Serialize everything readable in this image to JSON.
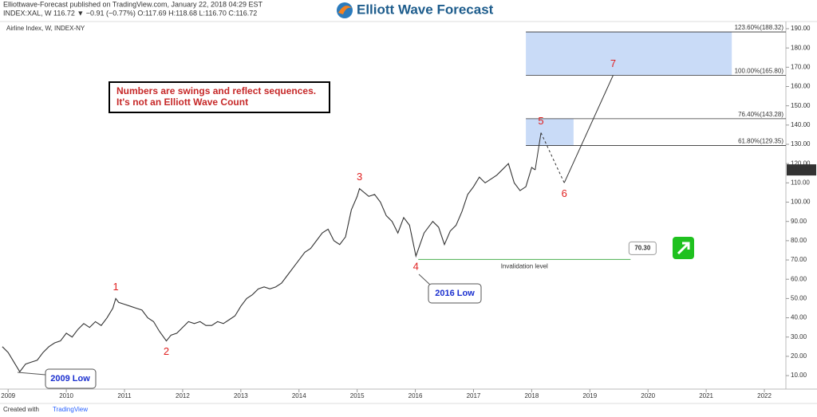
{
  "header": {
    "published": "Elliottwave-Forecast published on TradingView.com, January 22, 2018 04:29 EST",
    "symbol": "INDEX:XAL, W  116.72 ▼ −0.91 (−0.77%)  O:117.69  H:118.68  L:116.70  C:116.72",
    "logo": "Elliott Wave Forecast",
    "footer": "Created with",
    "footer_brand": "TradingView"
  },
  "chart_data": {
    "type": "line",
    "title": "Airline Index, W, INDEX-NY",
    "annotation_lines": [
      "Numbers are swings and reflect sequences.",
      "It's not an Elliott Wave Count"
    ],
    "color": "#333333",
    "x": [
      2008.9,
      2009.0,
      2009.1,
      2009.2,
      2009.3,
      2009.4,
      2009.5,
      2009.6,
      2009.7,
      2009.8,
      2009.9,
      2010.0,
      2010.1,
      2010.2,
      2010.3,
      2010.4,
      2010.5,
      2010.6,
      2010.7,
      2010.8,
      2010.85,
      2010.9,
      2011.0,
      2011.1,
      2011.2,
      2011.3,
      2011.4,
      2011.5,
      2011.6,
      2011.72,
      2011.8,
      2011.9,
      2012.0,
      2012.1,
      2012.2,
      2012.3,
      2012.4,
      2012.5,
      2012.6,
      2012.7,
      2012.8,
      2012.9,
      2013.0,
      2013.1,
      2013.2,
      2013.3,
      2013.4,
      2013.5,
      2013.6,
      2013.7,
      2013.8,
      2013.9,
      2014.0,
      2014.1,
      2014.2,
      2014.3,
      2014.4,
      2014.5,
      2014.6,
      2014.7,
      2014.8,
      2014.9,
      2015.0,
      2015.04,
      2015.2,
      2015.3,
      2015.4,
      2015.5,
      2015.6,
      2015.7,
      2015.8,
      2015.9,
      2016.01,
      2016.15,
      2016.3,
      2016.4,
      2016.5,
      2016.6,
      2016.7,
      2016.8,
      2016.9,
      2017.0,
      2017.1,
      2017.2,
      2017.3,
      2017.4,
      2017.5,
      2017.6,
      2017.7,
      2017.8,
      2017.9,
      2018.0,
      2018.06
    ],
    "values": [
      25,
      22,
      17,
      12,
      16,
      17,
      18,
      22,
      25,
      27,
      28,
      32,
      30,
      34,
      37,
      35,
      38,
      36,
      40,
      45,
      50,
      48,
      47,
      46,
      45,
      44,
      40,
      38,
      33,
      28,
      31,
      32,
      35,
      38,
      37,
      38,
      36,
      36,
      38,
      37,
      39,
      41,
      46,
      50,
      52,
      55,
      56,
      55,
      56,
      58,
      62,
      66,
      70,
      74,
      76,
      80,
      84,
      86,
      80,
      78,
      82,
      96,
      103,
      107,
      103,
      104,
      100,
      93,
      90,
      84,
      92,
      88,
      72,
      84,
      90,
      87,
      78,
      85,
      88,
      95,
      104,
      108,
      113,
      110,
      112,
      114,
      117,
      120,
      110,
      106,
      108,
      118,
      116.72
    ],
    "last_price": 116.72,
    "projection": {
      "x": [
        2018.06,
        2018.16,
        2018.56,
        2019.4
      ],
      "values": [
        116.72,
        136,
        110,
        165.8
      ],
      "dashed": [
        false,
        true,
        false
      ],
      "color": "#333333"
    },
    "swings": {
      "labels": [
        "1",
        "2",
        "3",
        "4",
        "5",
        "6",
        "7"
      ],
      "x": [
        2010.85,
        2011.72,
        2015.04,
        2016.01,
        2018.16,
        2018.56,
        2019.4
      ],
      "values": [
        50,
        28,
        107,
        72,
        136,
        110,
        165.8
      ],
      "color": "#e02020"
    },
    "fib_zones": [
      {
        "from": 129.35,
        "to": 143.28,
        "x": [
          2017.9,
          2018.72
        ]
      },
      {
        "from": 165.8,
        "to": 188.32,
        "x": [
          2017.9,
          2021.44
        ]
      }
    ],
    "fib_color": "#c9dbf7",
    "fib_start": 2017.9,
    "fib_levels": [
      {
        "value": 188.32,
        "label": "123.60%(188.32)"
      },
      {
        "value": 165.8,
        "label": "100.00%(165.80)"
      },
      {
        "value": 143.28,
        "label": "76.40%(143.28)"
      },
      {
        "value": 129.35,
        "label": "61.80%(129.35)"
      }
    ],
    "invalidation": {
      "level": {
        "value": 70.3,
        "label": "70.30"
      },
      "text": "Invalidation level",
      "x": [
        2016.05,
        2019.7
      ],
      "color": "#4caf50"
    },
    "callouts": [
      "2009 Low",
      "2016 Low"
    ],
    "xlim": [
      2008.86,
      2022.37
    ],
    "xticks": [
      2009,
      2010,
      2011,
      2012,
      2013,
      2014,
      2015,
      2016,
      2017,
      2018,
      2019,
      2020,
      2021,
      2022
    ],
    "ylim": [
      3,
      193.3
    ],
    "yticks": [
      {
        "value": 10,
        "label": "10.00"
      },
      {
        "value": 20,
        "label": "20.00"
      },
      {
        "value": 30,
        "label": "30.00"
      },
      {
        "value": 40,
        "label": "40.00"
      },
      {
        "value": 50,
        "label": "50.00"
      },
      {
        "value": 60,
        "label": "60.00"
      },
      {
        "value": 70,
        "label": "70.00"
      },
      {
        "value": 80,
        "label": "80.00"
      },
      {
        "value": 90,
        "label": "90.00"
      },
      {
        "value": 100,
        "label": "100.00"
      },
      {
        "value": 110,
        "label": "110.00"
      },
      {
        "value": 120,
        "label": "120.00"
      },
      {
        "value": 130,
        "label": "130.00"
      },
      {
        "value": 140,
        "label": "140.00"
      },
      {
        "value": 150,
        "label": "150.00"
      },
      {
        "value": 160,
        "label": "160.00"
      },
      {
        "value": 170,
        "label": "170.00"
      },
      {
        "value": 180,
        "label": "180.00"
      },
      {
        "value": 190,
        "label": "190.00"
      }
    ]
  }
}
